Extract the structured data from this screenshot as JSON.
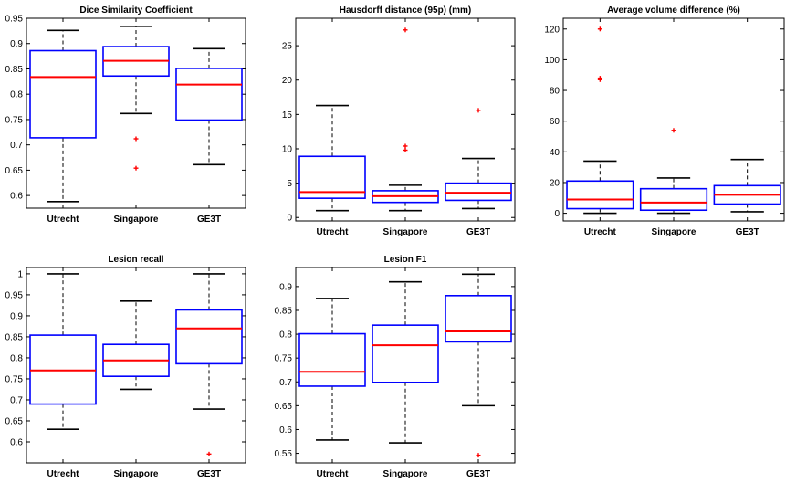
{
  "chart_data": [
    {
      "type": "boxplot",
      "title": "Dice Similarity Coefficient",
      "categories": [
        "Utrecht",
        "Singapore",
        "GE3T"
      ],
      "ylim": [
        0.575,
        0.95
      ],
      "yticks": [
        0.6,
        0.65,
        0.7,
        0.75,
        0.8,
        0.85,
        0.9,
        0.95
      ],
      "yticklabels": [
        "0.6",
        "0.65",
        "0.7",
        "0.75",
        "0.8",
        "0.85",
        "0.9",
        "0.95"
      ],
      "boxes": [
        {
          "whislo": 0.588,
          "q1": 0.714,
          "med": 0.834,
          "q3": 0.886,
          "whishi": 0.926,
          "fliers": []
        },
        {
          "whislo": 0.762,
          "q1": 0.836,
          "med": 0.866,
          "q3": 0.894,
          "whishi": 0.934,
          "fliers": [
            0.712,
            0.654
          ]
        },
        {
          "whislo": 0.661,
          "q1": 0.749,
          "med": 0.819,
          "q3": 0.851,
          "whishi": 0.89,
          "fliers": []
        }
      ]
    },
    {
      "type": "boxplot",
      "title": "Hausdorff distance (95p) (mm)",
      "categories": [
        "Utrecht",
        "Singapore",
        "GE3T"
      ],
      "ylim": [
        -0.5,
        29
      ],
      "yticks": [
        0,
        5,
        10,
        15,
        20,
        25
      ],
      "yticklabels": [
        "0",
        "5",
        "10",
        "15",
        "20",
        "25"
      ],
      "boxes": [
        {
          "whislo": 1.0,
          "q1": 2.8,
          "med": 3.7,
          "q3": 8.9,
          "whishi": 16.3,
          "fliers": []
        },
        {
          "whislo": 1.0,
          "q1": 2.2,
          "med": 3.1,
          "q3": 3.9,
          "whishi": 4.7,
          "fliers": [
            27.3,
            10.4,
            9.8
          ]
        },
        {
          "whislo": 1.3,
          "q1": 2.5,
          "med": 3.6,
          "q3": 5.0,
          "whishi": 8.6,
          "fliers": [
            15.6
          ]
        }
      ]
    },
    {
      "type": "boxplot",
      "title": "Average volume difference  (%)",
      "categories": [
        "Utrecht",
        "Singapore",
        "GE3T"
      ],
      "ylim": [
        -5,
        127
      ],
      "yticks": [
        0,
        20,
        40,
        60,
        80,
        100,
        120
      ],
      "yticklabels": [
        "0",
        "20",
        "40",
        "60",
        "80",
        "100",
        "120"
      ],
      "boxes": [
        {
          "whislo": 0,
          "q1": 3,
          "med": 9,
          "q3": 21,
          "whishi": 34,
          "fliers": [
            120,
            88,
            87
          ]
        },
        {
          "whislo": 0,
          "q1": 2,
          "med": 7,
          "q3": 16,
          "whishi": 23,
          "fliers": [
            54
          ]
        },
        {
          "whislo": 1,
          "q1": 6,
          "med": 12,
          "q3": 18,
          "whishi": 35,
          "fliers": []
        }
      ]
    },
    {
      "type": "boxplot",
      "title": "Lesion recall",
      "categories": [
        "Utrecht",
        "Singapore",
        "GE3T"
      ],
      "ylim": [
        0.55,
        1.015
      ],
      "yticks": [
        0.6,
        0.65,
        0.7,
        0.75,
        0.8,
        0.85,
        0.9,
        0.95,
        1.0
      ],
      "yticklabels": [
        "0.6",
        "0.65",
        "0.7",
        "0.75",
        "0.8",
        "0.85",
        "0.9",
        "0.95",
        "1"
      ],
      "boxes": [
        {
          "whislo": 0.63,
          "q1": 0.69,
          "med": 0.77,
          "q3": 0.854,
          "whishi": 1.0,
          "fliers": []
        },
        {
          "whislo": 0.725,
          "q1": 0.756,
          "med": 0.794,
          "q3": 0.832,
          "whishi": 0.935,
          "fliers": []
        },
        {
          "whislo": 0.678,
          "q1": 0.786,
          "med": 0.87,
          "q3": 0.914,
          "whishi": 1.0,
          "fliers": [
            0.571
          ]
        }
      ]
    },
    {
      "type": "boxplot",
      "title": "Lesion F1",
      "categories": [
        "Utrecht",
        "Singapore",
        "GE3T"
      ],
      "ylim": [
        0.53,
        0.94
      ],
      "yticks": [
        0.55,
        0.6,
        0.65,
        0.7,
        0.75,
        0.8,
        0.85,
        0.9
      ],
      "yticklabels": [
        "0.55",
        "0.6",
        "0.65",
        "0.7",
        "0.75",
        "0.8",
        "0.85",
        "0.9"
      ],
      "boxes": [
        {
          "whislo": 0.578,
          "q1": 0.691,
          "med": 0.721,
          "q3": 0.801,
          "whishi": 0.875,
          "fliers": []
        },
        {
          "whislo": 0.572,
          "q1": 0.699,
          "med": 0.777,
          "q3": 0.819,
          "whishi": 0.91,
          "fliers": []
        },
        {
          "whislo": 0.65,
          "q1": 0.784,
          "med": 0.806,
          "q3": 0.881,
          "whishi": 0.926,
          "fliers": [
            0.546
          ]
        }
      ]
    }
  ],
  "colors": {
    "box": "#0000ff",
    "median": "#ff0000",
    "whisker": "#000000",
    "flier": "#ff0000",
    "axes": "#000000",
    "background": "#ffffff"
  }
}
